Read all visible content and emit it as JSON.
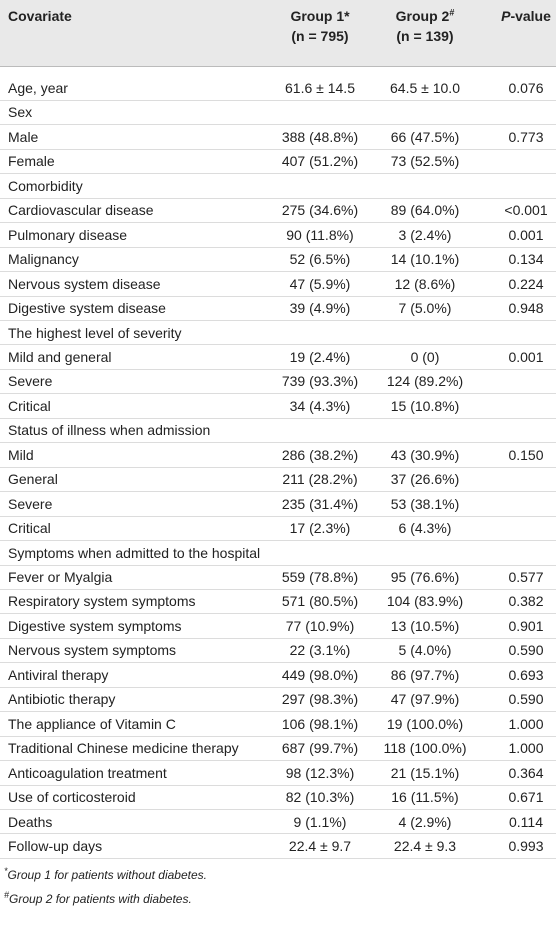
{
  "table": {
    "columns": [
      {
        "label": "Covariate"
      },
      {
        "label": "Group 1*",
        "sub": "(n = 795)"
      },
      {
        "label": "Group 2",
        "sup": "#",
        "sub": "(n = 139)"
      },
      {
        "italic": "P",
        "label": "-value"
      }
    ],
    "rows": [
      [
        "Age, year",
        "61.6 ± 14.5",
        "64.5 ± 10.0",
        "0.076"
      ],
      [
        "Sex"
      ],
      [
        "Male",
        "388 (48.8%)",
        "66 (47.5%)",
        "0.773"
      ],
      [
        "Female",
        "407 (51.2%)",
        "73 (52.5%)"
      ],
      [
        "Comorbidity"
      ],
      [
        "Cardiovascular disease",
        "275 (34.6%)",
        "89 (64.0%)",
        "<0.001"
      ],
      [
        "Pulmonary disease",
        "90 (11.8%)",
        "3 (2.4%)",
        "0.001"
      ],
      [
        "Malignancy",
        "52 (6.5%)",
        "14 (10.1%)",
        "0.134"
      ],
      [
        "Nervous system disease",
        "47 (5.9%)",
        "12 (8.6%)",
        "0.224"
      ],
      [
        "Digestive system disease",
        "39 (4.9%)",
        "7 (5.0%)",
        "0.948"
      ],
      [
        "The highest level of severity"
      ],
      [
        "Mild and general",
        "19 (2.4%)",
        "0 (0)",
        "0.001"
      ],
      [
        "Severe",
        "739 (93.3%)",
        "124 (89.2%)"
      ],
      [
        "Critical",
        "34 (4.3%)",
        "15 (10.8%)"
      ],
      [
        "Status of illness when admission"
      ],
      [
        "Mild",
        "286 (38.2%)",
        "43 (30.9%)",
        "0.150"
      ],
      [
        "General",
        "211 (28.2%)",
        "37 (26.6%)"
      ],
      [
        "Severe",
        "235 (31.4%)",
        "53 (38.1%)"
      ],
      [
        "Critical",
        "17 (2.3%)",
        "6 (4.3%)"
      ],
      [
        "Symptoms when admitted to the hospital"
      ],
      [
        "Fever or Myalgia",
        "559 (78.8%)",
        "95 (76.6%)",
        "0.577"
      ],
      [
        "Respiratory system symptoms",
        "571 (80.5%)",
        "104 (83.9%)",
        "0.382"
      ],
      [
        "Digestive system symptoms",
        "77 (10.9%)",
        "13 (10.5%)",
        "0.901"
      ],
      [
        "Nervous system symptoms",
        "22 (3.1%)",
        "5 (4.0%)",
        "0.590"
      ],
      [
        "Antiviral therapy",
        "449 (98.0%)",
        "86 (97.7%)",
        "0.693"
      ],
      [
        "Antibiotic therapy",
        "297 (98.3%)",
        "47 (97.9%)",
        "0.590"
      ],
      [
        "The appliance of Vitamin C",
        "106 (98.1%)",
        "19 (100.0%)",
        "1.000"
      ],
      [
        "Traditional Chinese medicine therapy",
        "687 (99.7%)",
        "118 (100.0%)",
        "1.000"
      ],
      [
        "Anticoagulation treatment",
        "98 (12.3%)",
        "21 (15.1%)",
        "0.364"
      ],
      [
        "Use of corticosteroid",
        "82 (10.3%)",
        "16 (11.5%)",
        "0.671"
      ],
      [
        "Deaths",
        "9 (1.1%)",
        "4 (2.9%)",
        "0.114"
      ],
      [
        "Follow-up days",
        "22.4 ± 9.7",
        "22.4 ± 9.3",
        "0.993"
      ]
    ]
  },
  "footnotes": [
    {
      "mark": "*",
      "text": "Group 1 for patients without diabetes."
    },
    {
      "mark": "#",
      "text": "Group 2 for patients with diabetes."
    }
  ]
}
